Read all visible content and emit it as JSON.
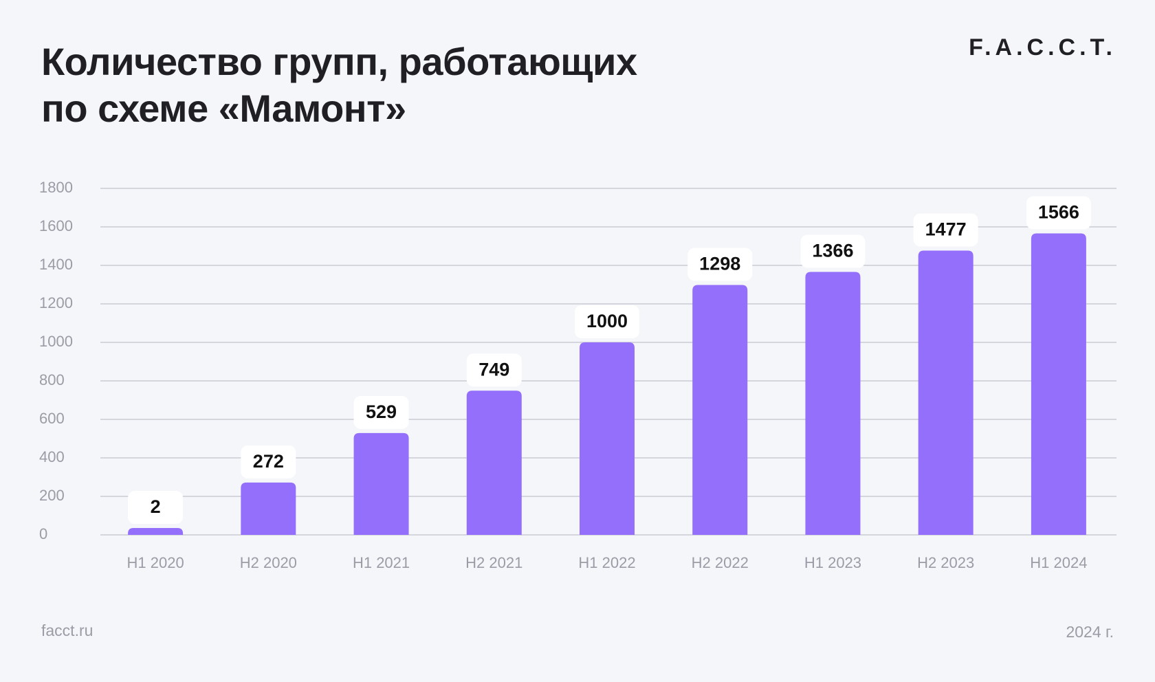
{
  "header": {
    "title_line1": "Количество групп, работающих",
    "title_line2": "по схеме «Мамонт»",
    "logo": "F.A.C.C.T."
  },
  "footer": {
    "site": "facct.ru",
    "year": "2024 г."
  },
  "colors": {
    "bar": "#946ffc",
    "grid": "#c9cad3",
    "background": "#f5f6fa",
    "label_box": "#ffffff"
  },
  "chart_data": {
    "type": "bar",
    "categories": [
      "H1 2020",
      "H2 2020",
      "H1 2021",
      "H2 2021",
      "H1 2022",
      "H2 2022",
      "H1 2023",
      "H2 2023",
      "H1 2024"
    ],
    "values": [
      2,
      272,
      529,
      749,
      1000,
      1298,
      1366,
      1477,
      1566
    ],
    "yticks": [
      0,
      200,
      400,
      600,
      800,
      1000,
      1200,
      1400,
      1600,
      1800
    ],
    "ylim": [
      0,
      1800
    ],
    "grid": true,
    "legend": "none"
  }
}
